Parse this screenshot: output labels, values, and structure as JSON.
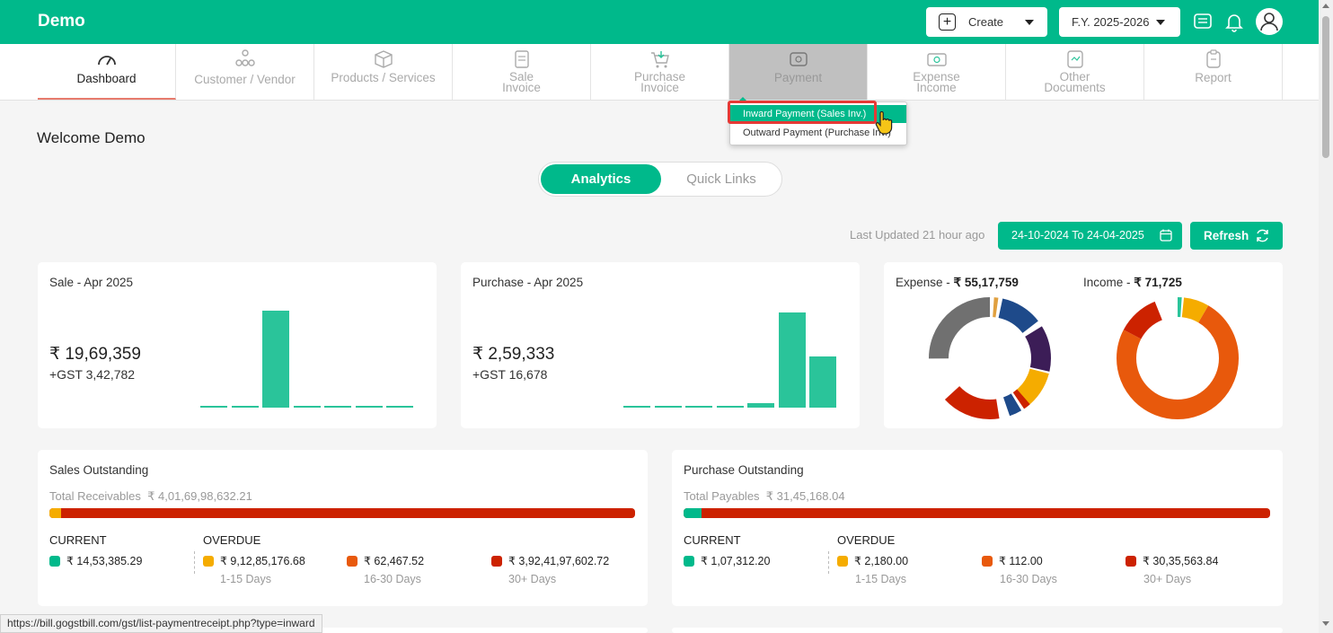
{
  "app": {
    "brand": "Demo"
  },
  "header": {
    "create_label": "Create",
    "fy_label": "F.Y. 2025-2026",
    "icons": [
      "chat-icon",
      "bell-icon",
      "user-icon"
    ]
  },
  "nav": {
    "items": [
      {
        "label": "Dashboard",
        "icon": "gauge-icon"
      },
      {
        "label": "Customer / Vendor",
        "icon": "users-icon"
      },
      {
        "label": "Products / Services",
        "icon": "box-icon"
      },
      {
        "label": "Sale Invoice",
        "line1": "Sale",
        "line2": "Invoice",
        "icon": "invoice-icon"
      },
      {
        "label": "Purchase Invoice",
        "line1": "Purchase",
        "line2": "Invoice",
        "icon": "cart-icon"
      },
      {
        "label": "Payment",
        "icon": "payment-icon"
      },
      {
        "label": "Expense Income",
        "line1": "Expense",
        "line2": "Income",
        "icon": "money-icon"
      },
      {
        "label": "Other Documents",
        "line1": "Other",
        "line2": "Documents",
        "icon": "document-icon"
      },
      {
        "label": "Report",
        "icon": "clipboard-icon"
      }
    ]
  },
  "payment_menu": {
    "items": [
      "Inward Payment (Sales Inv.)",
      "Outward Payment (Purchase Inv.)"
    ]
  },
  "welcome": "Welcome Demo",
  "tabs": {
    "analytics": "Analytics",
    "quick_links": "Quick Links"
  },
  "last_updated": "Last Updated 21 hour ago",
  "date_range": "24-10-2024 To 24-04-2025",
  "refresh_label": "Refresh",
  "sale_card": {
    "title": "Sale - Apr 2025",
    "amount": "₹ 19,69,359",
    "gst": "+GST 3,42,782",
    "bars": [
      0.01,
      0.01,
      1.0,
      0.01,
      0.01,
      0.01,
      0.01
    ]
  },
  "purchase_card": {
    "title": "Purchase - Apr 2025",
    "amount": "₹ 2,59,333",
    "gst": "+GST 16,678",
    "bars": [
      0.01,
      0.01,
      0.01,
      0.01,
      0.05,
      1.0,
      0.54
    ]
  },
  "expense": {
    "label": "Expense - ",
    "amount": "₹ 55,17,759"
  },
  "income": {
    "label": "Income - ",
    "amount": "₹ 71,725"
  },
  "colors": {
    "brand": "#00b98b",
    "current": "#00b98b",
    "d1_15": "#f5ac00",
    "d16_30": "#e8590c",
    "d30_plus": "#cc2200"
  },
  "sales_outstanding": {
    "title": "Sales Outstanding",
    "total_label": "Total Receivables",
    "total_value": "₹ 4,01,69,98,632.21",
    "current_label": "CURRENT",
    "overdue_label": "OVERDUE",
    "current": "₹ 14,53,385.29",
    "d1_15": "₹ 9,12,85,176.68",
    "d16_30": "₹ 62,467.52",
    "d30_plus": "₹ 3,92,41,97,602.72",
    "days": [
      "1-15 Days",
      "16-30 Days",
      "30+ Days"
    ]
  },
  "purchase_outstanding": {
    "title": "Purchase Outstanding",
    "total_label": "Total Payables",
    "total_value": "₹ 31,45,168.04",
    "current_label": "CURRENT",
    "overdue_label": "OVERDUE",
    "current": "₹ 1,07,312.20",
    "d1_15": "₹ 2,180.00",
    "d16_30": "₹ 112.00",
    "d30_plus": "₹ 30,35,563.84",
    "days": [
      "1-15 Days",
      "16-30 Days",
      "30+ Days"
    ]
  },
  "status_url": "https://bill.gogstbill.com/gst/list-paymentreceipt.php?type=inward"
}
